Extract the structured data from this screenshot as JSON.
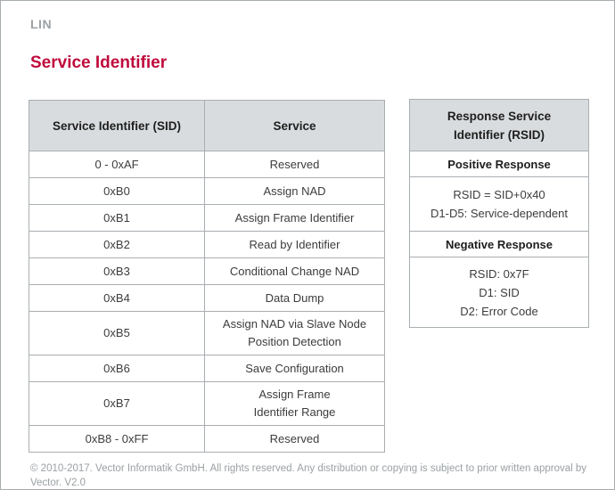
{
  "colors": {
    "accent_red": "#c00b3c",
    "table_header_bg": "#d9dcde",
    "table_border": "#a9aeb1",
    "muted_gray": "#9ba1a5",
    "body_text": "#3c3c3c"
  },
  "header": {
    "eyebrow": "LIN",
    "title": "Service Identifier"
  },
  "sid_table": {
    "columns": [
      "Service Identifier (SID)",
      "Service"
    ],
    "rows": [
      {
        "sid": "0 - 0xAF",
        "service": [
          "Reserved"
        ]
      },
      {
        "sid": "0xB0",
        "service": [
          "Assign NAD"
        ]
      },
      {
        "sid": "0xB1",
        "service": [
          "Assign Frame Identifier"
        ]
      },
      {
        "sid": "0xB2",
        "service": [
          "Read by Identifier"
        ]
      },
      {
        "sid": "0xB3",
        "service": [
          "Conditional Change NAD"
        ]
      },
      {
        "sid": "0xB4",
        "service": [
          "Data Dump"
        ]
      },
      {
        "sid": "0xB5",
        "service": [
          "Assign NAD via Slave Node",
          "Position Detection"
        ]
      },
      {
        "sid": "0xB6",
        "service": [
          "Save Configuration"
        ]
      },
      {
        "sid": "0xB7",
        "service": [
          "Assign Frame",
          "Identifier Range"
        ]
      },
      {
        "sid": "0xB8 - 0xFF",
        "service": [
          "Reserved"
        ]
      }
    ]
  },
  "rsid_table": {
    "title": [
      "Response Service",
      "Identifier (RSID)"
    ],
    "sections": [
      {
        "label": "Positive Response",
        "lines": [
          "RSID = SID+0x40",
          "D1-D5: Service-dependent"
        ]
      },
      {
        "label": "Negative Response",
        "lines": [
          "RSID: 0x7F",
          "D1: SID",
          "D2: Error Code"
        ]
      }
    ]
  },
  "footer": {
    "copyright": "© 2010-2017. Vector Informatik GmbH. All rights reserved. Any distribution or copying is subject to prior written approval by Vector. V2.0"
  }
}
